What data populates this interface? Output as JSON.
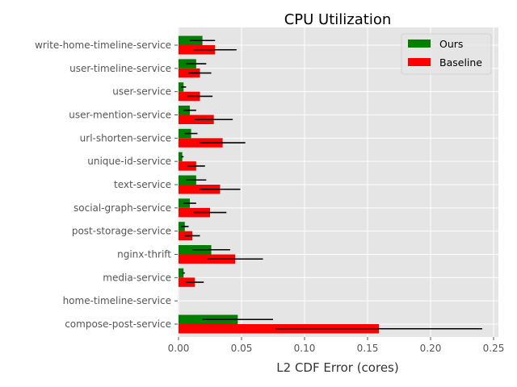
{
  "chart_data": {
    "type": "bar",
    "orientation": "horizontal",
    "title": "CPU Utilization",
    "xlabel": "L2 CDF Error (cores)",
    "ylabel": "",
    "xlim": [
      0,
      0.253
    ],
    "xticks": [
      0.0,
      0.05,
      0.1,
      0.15,
      0.2,
      0.25
    ],
    "xtick_labels": [
      "0.00",
      "0.05",
      "0.10",
      "0.15",
      "0.20",
      "0.25"
    ],
    "grid": true,
    "legend_position": "top-right",
    "categories": [
      "write-home-timeline-service",
      "user-timeline-service",
      "user-service",
      "user-mention-service",
      "url-shorten-service",
      "unique-id-service",
      "text-service",
      "social-graph-service",
      "post-storage-service",
      "nginx-thrift",
      "media-service",
      "home-timeline-service",
      "compose-post-service"
    ],
    "series": [
      {
        "name": "Ours",
        "color": "#008000",
        "values": [
          0.019,
          0.014,
          0.004,
          0.009,
          0.01,
          0.003,
          0.014,
          0.009,
          0.005,
          0.026,
          0.004,
          0.0,
          0.047
        ],
        "errors": [
          0.01,
          0.008,
          0.002,
          0.005,
          0.005,
          0.001,
          0.008,
          0.005,
          0.003,
          0.015,
          0.001,
          0.0,
          0.028
        ]
      },
      {
        "name": "Baseline",
        "color": "#ff0000",
        "values": [
          0.029,
          0.017,
          0.017,
          0.028,
          0.035,
          0.014,
          0.033,
          0.025,
          0.011,
          0.045,
          0.013,
          0.0,
          0.159
        ],
        "errors": [
          0.017,
          0.009,
          0.01,
          0.015,
          0.018,
          0.007,
          0.016,
          0.013,
          0.006,
          0.022,
          0.007,
          0.0,
          0.082
        ]
      }
    ]
  },
  "colors": {
    "plot_background": "#e5e5e5",
    "grid": "#ffffff",
    "error_bar": "#000000"
  }
}
